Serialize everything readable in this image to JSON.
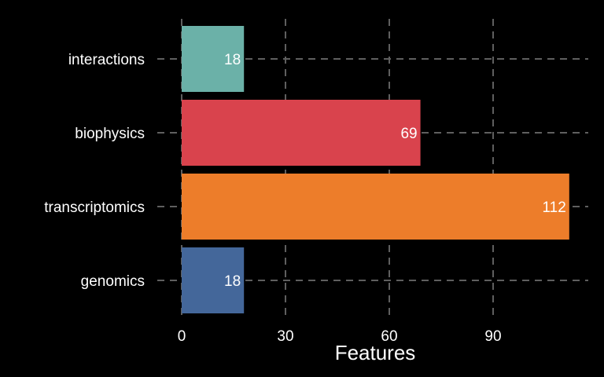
{
  "chart_data": {
    "type": "bar",
    "orientation": "horizontal",
    "categories": [
      "interactions",
      "biophysics",
      "transcriptomics",
      "genomics"
    ],
    "values": [
      18,
      69,
      112,
      18
    ],
    "colors": [
      "#6bb1a8",
      "#d9434d",
      "#ed7d2a",
      "#44679a"
    ],
    "xlabel": "Features",
    "ylabel": "",
    "xlim": [
      0,
      118
    ],
    "xticks": [
      0,
      30,
      60,
      90
    ],
    "xtick_labels": [
      "0",
      "30",
      "60",
      "90"
    ],
    "grid": true,
    "legend": "none",
    "data_labels": [
      "18",
      "69",
      "112",
      "18"
    ]
  },
  "theme": {
    "background": "#000000",
    "text_color": "#ffffff",
    "grid_color": "#5f5f5f"
  }
}
